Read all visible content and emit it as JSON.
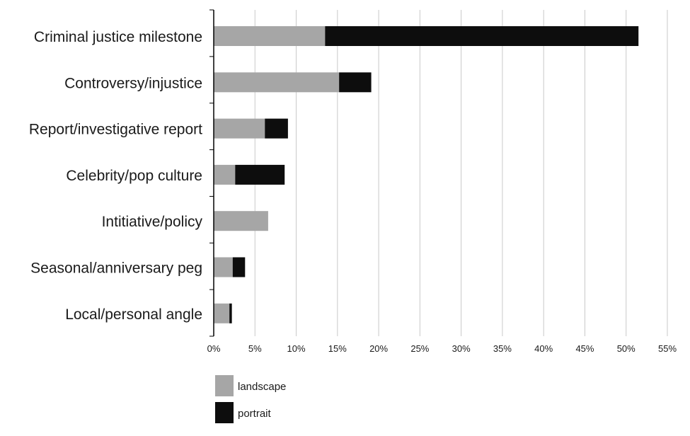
{
  "chart_data": {
    "type": "bar",
    "orientation": "horizontal",
    "stacked": true,
    "categories": [
      "Criminal justice milestone",
      "Controversy/injustice",
      "Report/investigative report",
      "Celebrity/pop culture",
      "Intitiative/policy",
      "Seasonal/anniversary peg",
      "Local/personal angle"
    ],
    "series": [
      {
        "name": "landscape",
        "color": "#a6a6a6",
        "values": [
          13.5,
          15.2,
          6.2,
          2.6,
          6.6,
          2.3,
          1.9
        ]
      },
      {
        "name": "portrait",
        "color": "#0d0d0d",
        "values": [
          38.0,
          3.9,
          2.8,
          6.0,
          0.0,
          1.5,
          0.3
        ]
      }
    ],
    "x_ticks": [
      "0%",
      "5%",
      "10%",
      "15%",
      "20%",
      "25%",
      "30%",
      "35%",
      "40%",
      "45%",
      "50%",
      "55%"
    ],
    "xlim": [
      0,
      55
    ],
    "title": "",
    "xlabel": "",
    "ylabel": "",
    "grid": "vertical",
    "legend_position": "bottom-left"
  }
}
